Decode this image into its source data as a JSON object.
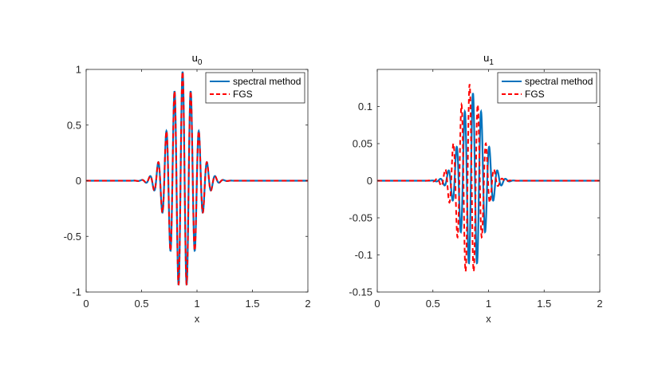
{
  "chart_data": [
    {
      "type": "line",
      "title": "u",
      "title_subscript": "0",
      "xlabel": "x",
      "ylabel": "",
      "xlim": [
        0,
        2
      ],
      "ylim": [
        -1,
        1
      ],
      "xticks": [
        "0",
        "0.5",
        "1",
        "1.5",
        "2"
      ],
      "yticks": [
        "-1",
        "-0.5",
        "0",
        "0.5",
        "1"
      ],
      "xtick_values": [
        0,
        0.5,
        1,
        1.5,
        2
      ],
      "ytick_values": [
        -1,
        -0.5,
        0,
        0.5,
        1
      ],
      "legend_position": "top-right",
      "grid": false,
      "series": [
        {
          "name": "spectral method",
          "color": "#0072BD",
          "style": "solid",
          "amplitude": 0.98,
          "center": 0.87,
          "width": 0.165,
          "frequency": 13.6,
          "phase": 0.0
        },
        {
          "name": "FGS",
          "color": "#FF0000",
          "style": "dashed",
          "amplitude": 0.98,
          "center": 0.87,
          "width": 0.165,
          "frequency": 13.6,
          "phase": 0.0
        }
      ]
    },
    {
      "type": "line",
      "title": "u",
      "title_subscript": "1",
      "xlabel": "x",
      "ylabel": "",
      "xlim": [
        0,
        2
      ],
      "ylim": [
        -0.15,
        0.15
      ],
      "xticks": [
        "0",
        "0.5",
        "1",
        "1.5",
        "2"
      ],
      "yticks": [
        "-0.15",
        "-0.1",
        "-0.05",
        "0",
        "0.05",
        "0.1"
      ],
      "xtick_values": [
        0,
        0.5,
        1,
        1.5,
        2
      ],
      "ytick_values": [
        -0.15,
        -0.1,
        -0.05,
        0,
        0.05,
        0.1
      ],
      "legend_position": "top-right",
      "grid": false,
      "series": [
        {
          "name": "spectral method",
          "color": "#0072BD",
          "style": "solid",
          "amplitude": 0.118,
          "center": 0.86,
          "width": 0.15,
          "frequency": 13.6,
          "phase": 0.0
        },
        {
          "name": "FGS",
          "color": "#FF0000",
          "style": "dashed",
          "amplitude": 0.13,
          "center": 0.83,
          "width": 0.15,
          "frequency": 13.6,
          "phase": 0.0
        }
      ]
    }
  ]
}
